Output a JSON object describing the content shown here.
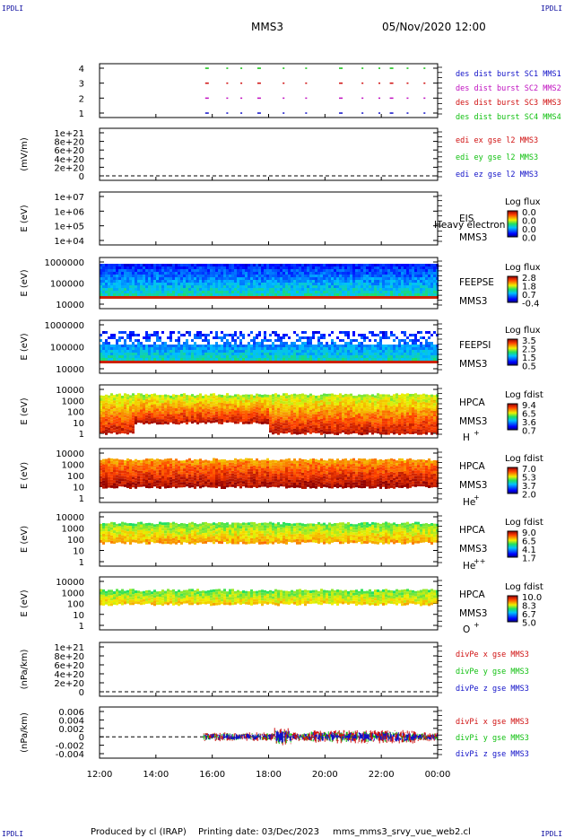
{
  "header": {
    "corner_tl": "IPDLI",
    "corner_tr": "IPDLI",
    "corner_bl": "IPDLI",
    "corner_br": "IPDLI",
    "spacecraft": "MMS3",
    "datetime": "05/Nov/2020 12:00"
  },
  "footer": {
    "produced": "Produced by cl (IRAP)",
    "printed": "Printing date: 03/Dec/2023",
    "script": "mms_mms3_srvy_vue_web2.cl"
  },
  "colors": {
    "blue": "#1010c8",
    "red": "#d01010",
    "green": "#10c010",
    "magenta": "#c010c0"
  },
  "chart_data": [
    {
      "type": "scatter",
      "ylabel": "",
      "yticks": [
        "4",
        "3",
        "2",
        "1"
      ],
      "xticks": [
        "12:00",
        "14:00",
        "16:00",
        "18:00",
        "20:00",
        "22:00",
        "00:00"
      ],
      "series": [
        {
          "name": "des dist burst SC1 MMS1",
          "color": "#1010c8"
        },
        {
          "name": "des dist burst SC2 MMS2",
          "color": "#c010c0"
        },
        {
          "name": "des dist burst SC3 MMS3",
          "color": "#d01010"
        },
        {
          "name": "des dist burst SC4 MMS4",
          "color": "#10c010"
        }
      ]
    },
    {
      "type": "line",
      "ylabel": "(mV/m)",
      "yticks": [
        "1e+21",
        "8e+20",
        "6e+20",
        "4e+20",
        "2e+20",
        "0"
      ],
      "series": [
        {
          "name": "edi ex gse l2 MMS3",
          "color": "#d01010"
        },
        {
          "name": "edi ey gse l2 MMS3",
          "color": "#10c010"
        },
        {
          "name": "edi ez gse l2 MMS3",
          "color": "#1010c8"
        }
      ]
    },
    {
      "type": "heatmap",
      "ylabel": "E (eV)",
      "yticks": [
        "1e+07",
        "1e+06",
        "1e+05",
        "1e+04"
      ],
      "label_lines": [
        "EIS",
        "MMS3"
      ],
      "overlay_text": "Heavy electron to",
      "colorbar_title": "Log flux",
      "colorbar_values": [
        "0.0",
        "0.0",
        "0.0",
        "0.0"
      ]
    },
    {
      "type": "heatmap",
      "ylabel": "E (eV)",
      "yticks": [
        "1000000",
        "100000",
        "10000"
      ],
      "label_lines": [
        "FEEPSE",
        "MMS3"
      ],
      "colorbar_title": "Log flux",
      "colorbar_values": [
        "2.8",
        "1.8",
        "0.7",
        "-0.4"
      ]
    },
    {
      "type": "heatmap",
      "ylabel": "E (eV)",
      "yticks": [
        "1000000",
        "100000",
        "10000"
      ],
      "label_lines": [
        "FEEPSI",
        "MMS3"
      ],
      "colorbar_title": "Log flux",
      "colorbar_values": [
        "3.5",
        "2.5",
        "1.5",
        "0.5"
      ]
    },
    {
      "type": "heatmap",
      "ylabel": "E (eV)",
      "yticks": [
        "10000",
        "1000",
        "100",
        "10",
        "1"
      ],
      "label_lines": [
        "HPCA",
        "MMS3"
      ],
      "ion": "H",
      "ion_charge": "+",
      "colorbar_title": "Log fdist",
      "colorbar_values": [
        "9.4",
        "6.5",
        "3.6",
        "0.7"
      ]
    },
    {
      "type": "heatmap",
      "ylabel": "E (eV)",
      "yticks": [
        "10000",
        "1000",
        "100",
        "10",
        "1"
      ],
      "label_lines": [
        "HPCA",
        "MMS3"
      ],
      "ion": "He",
      "ion_charge": "+",
      "colorbar_title": "Log fdist",
      "colorbar_values": [
        "7.0",
        "5.3",
        "3.7",
        "2.0"
      ]
    },
    {
      "type": "heatmap",
      "ylabel": "E (eV)",
      "yticks": [
        "10000",
        "1000",
        "100",
        "10",
        "1"
      ],
      "label_lines": [
        "HPCA",
        "MMS3"
      ],
      "ion": "He",
      "ion_charge": "++",
      "colorbar_title": "Log fdist",
      "colorbar_values": [
        "9.0",
        "6.5",
        "4.1",
        "1.7"
      ]
    },
    {
      "type": "heatmap",
      "ylabel": "E (eV)",
      "yticks": [
        "10000",
        "1000",
        "100",
        "10",
        "1"
      ],
      "label_lines": [
        "HPCA",
        "MMS3"
      ],
      "ion": "O",
      "ion_charge": "+",
      "colorbar_title": "Log fdist",
      "colorbar_values": [
        "10.0",
        "8.3",
        "6.7",
        "5.0"
      ]
    },
    {
      "type": "line",
      "ylabel": "(nPa/km)",
      "yticks": [
        "1e+21",
        "8e+20",
        "6e+20",
        "4e+20",
        "2e+20",
        "0"
      ],
      "series": [
        {
          "name": "divPe x gse MMS3",
          "color": "#d01010"
        },
        {
          "name": "divPe y gse MMS3",
          "color": "#10c010"
        },
        {
          "name": "divPe z gse MMS3",
          "color": "#1010c8"
        }
      ]
    },
    {
      "type": "line",
      "ylabel": "(nPa/km)",
      "yticks": [
        "0.006",
        "0.004",
        "0.002",
        "0",
        "-0.002",
        "-0.004"
      ],
      "xticks": [
        "12:00",
        "14:00",
        "16:00",
        "18:00",
        "20:00",
        "22:00",
        "00:00"
      ],
      "series": [
        {
          "name": "divPi x gse MMS3",
          "color": "#d01010"
        },
        {
          "name": "divPi y gse MMS3",
          "color": "#10c010"
        },
        {
          "name": "divPi z gse MMS3",
          "color": "#1010c8"
        }
      ]
    }
  ]
}
